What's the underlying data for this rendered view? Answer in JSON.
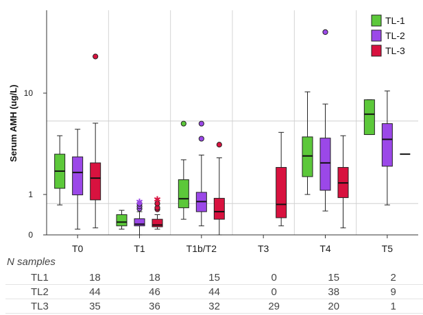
{
  "chart_data": {
    "type": "box",
    "ylabel": "Serum AMH (ug/L)",
    "yscale": "log-like",
    "yticks": [
      {
        "value": 0,
        "label": "0"
      },
      {
        "value": 1,
        "label": "1"
      },
      {
        "value": 10,
        "label": "10"
      }
    ],
    "reference_lines": [
      0.6,
      5.3
    ],
    "categories": [
      "T0",
      "T1",
      "T1b/T2",
      "T3",
      "T4",
      "T5"
    ],
    "series": [
      {
        "name": "TL-1",
        "color": "#5cc83a",
        "boxes": [
          {
            "whisker_low": 0.55,
            "q1": 1.15,
            "median": 1.7,
            "q3": 2.5,
            "whisker_high": 3.8,
            "outliers": []
          },
          {
            "whisker_low": 0.02,
            "q1": 0.05,
            "median": 0.1,
            "q3": 0.25,
            "whisker_high": 0.37,
            "outliers": []
          },
          {
            "whisker_low": 0.15,
            "q1": 0.45,
            "median": 0.8,
            "q3": 1.4,
            "whisker_high": 2.2,
            "outliers": [
              5.0
            ]
          },
          null,
          {
            "whisker_low": 1.0,
            "q1": 1.5,
            "median": 2.4,
            "q3": 3.7,
            "whisker_high": 10.3,
            "outliers": []
          },
          {
            "whisker_low": 3.9,
            "q1": 3.9,
            "median": 6.2,
            "q3": 8.6,
            "whisker_high": 8.6,
            "outliers": []
          }
        ]
      },
      {
        "name": "TL-2",
        "color": "#9b48e8",
        "boxes": [
          {
            "whisker_low": 0.02,
            "q1": 0.98,
            "median": 1.65,
            "q3": 2.35,
            "whisker_high": 4.4,
            "outliers": []
          },
          {
            "whisker_low": 0.0,
            "q1": 0.05,
            "median": 0.07,
            "q3": 0.16,
            "whisker_high": 0.33,
            "outliers": [
              0.42,
              0.5,
              0.59
            ]
          },
          {
            "whisker_low": 0.05,
            "q1": 0.33,
            "median": 0.68,
            "q3": 1.05,
            "whisker_high": 2.45,
            "outliers": [
              3.55,
              5.0
            ]
          },
          null,
          {
            "whisker_low": 0.35,
            "q1": 1.1,
            "median": 2.05,
            "q3": 3.6,
            "whisker_high": 7.8,
            "outliers": [
              40
            ]
          },
          {
            "whisker_low": 0.55,
            "q1": 1.9,
            "median": 3.5,
            "q3": 5.0,
            "whisker_high": 10.5,
            "outliers": []
          }
        ]
      },
      {
        "name": "TL-3",
        "color": "#d8123f",
        "boxes": [
          {
            "whisker_low": 0.03,
            "q1": 0.75,
            "median": 1.45,
            "q3": 2.05,
            "whisker_high": 5.05,
            "outliers": [
              23
            ]
          },
          {
            "whisker_low": 0.02,
            "q1": 0.04,
            "median": 0.06,
            "q3": 0.15,
            "whisker_high": 0.25,
            "outliers": [
              0.4,
              0.45,
              0.6
            ]
          },
          {
            "whisker_low": 0.0,
            "q1": 0.15,
            "median": 0.33,
            "q3": 0.82,
            "whisker_high": 2.3,
            "outliers": [
              3.1
            ]
          },
          {
            "whisker_low": 0.05,
            "q1": 0.18,
            "median": 0.57,
            "q3": 1.85,
            "whisker_high": 4.1,
            "outliers": []
          },
          {
            "whisker_low": 0.03,
            "q1": 0.85,
            "median": 1.3,
            "q3": 1.85,
            "whisker_high": 3.8,
            "outliers": []
          },
          {
            "whisker_low": 2.5,
            "q1": 2.5,
            "median": 2.5,
            "q3": 2.5,
            "whisker_high": 2.5,
            "outliers": []
          }
        ]
      }
    ],
    "star_outliers": [
      {
        "series": "TL-2",
        "category": "T1",
        "value": 0.67
      },
      {
        "series": "TL-3",
        "category": "T1",
        "value": 0.78
      }
    ],
    "legend": {
      "position": "top-right",
      "entries": [
        "TL-1",
        "TL-2",
        "TL-3"
      ]
    },
    "grid": "vertical category separators and horizontal reference lines"
  },
  "n_samples": {
    "title": "N samples",
    "rows": [
      {
        "label": "TL1",
        "values": [
          "18",
          "18",
          "15",
          "0",
          "15",
          "2"
        ]
      },
      {
        "label": "TL2",
        "values": [
          "44",
          "46",
          "44",
          "0",
          "38",
          "9"
        ]
      },
      {
        "label": "TL3",
        "values": [
          "35",
          "36",
          "32",
          "29",
          "20",
          "1"
        ]
      }
    ]
  }
}
